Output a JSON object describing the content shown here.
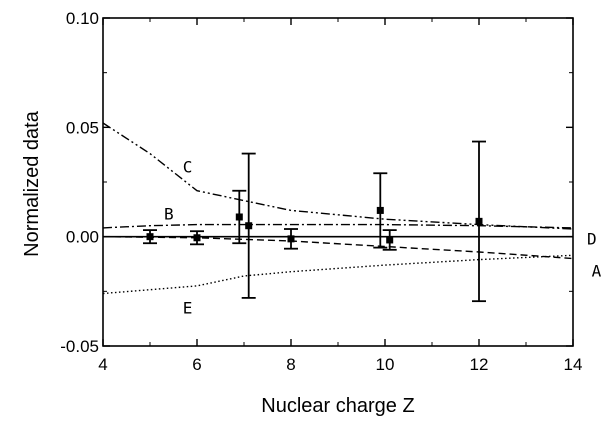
{
  "chart_data": {
    "type": "scatter",
    "title": "",
    "xlabel": "Nuclear charge Z",
    "ylabel": "Normalized data",
    "xlim": [
      4,
      14
    ],
    "ylim": [
      -0.05,
      0.1
    ],
    "x_ticks": [
      4,
      6,
      8,
      10,
      12,
      14
    ],
    "y_ticks": [
      -0.05,
      0.0,
      0.05,
      0.1
    ],
    "y_tick_labels": [
      "-0.05",
      "0.00",
      "0.05",
      "0.10"
    ],
    "grid": false,
    "points": [
      {
        "x": 5.0,
        "y": 0.0,
        "err": 0.003
      },
      {
        "x": 6.0,
        "y": -0.0005,
        "err": 0.003
      },
      {
        "x": 6.9,
        "y": 0.009,
        "err": 0.012
      },
      {
        "x": 7.1,
        "y": 0.005,
        "err": 0.033
      },
      {
        "x": 8.0,
        "y": -0.001,
        "err": 0.0045
      },
      {
        "x": 9.9,
        "y": 0.012,
        "err": 0.017
      },
      {
        "x": 10.1,
        "y": -0.0015,
        "err": 0.0045
      },
      {
        "x": 12.0,
        "y": 0.007,
        "err": 0.0365
      }
    ],
    "curves": [
      {
        "label": "A",
        "style": "dashed",
        "x": [
          4,
          6,
          8,
          10,
          12,
          14
        ],
        "y": [
          0.0,
          -0.0005,
          -0.002,
          -0.0045,
          -0.007,
          -0.01
        ]
      },
      {
        "label": "B",
        "style": "dashdot",
        "x": [
          4,
          5,
          6,
          8,
          10,
          12,
          14
        ],
        "y": [
          0.004,
          0.005,
          0.0055,
          0.0055,
          0.0055,
          0.005,
          0.004
        ]
      },
      {
        "label": "C",
        "style": "dashdotdot",
        "x": [
          4,
          5,
          6,
          7,
          8,
          10,
          12,
          14
        ],
        "y": [
          0.052,
          0.038,
          0.021,
          0.0165,
          0.012,
          0.008,
          0.0055,
          0.0035
        ]
      },
      {
        "label": "D",
        "style": "solid",
        "x": [
          4,
          14
        ],
        "y": [
          0.0,
          0.0
        ]
      },
      {
        "label": "E",
        "style": "dotted",
        "x": [
          4,
          6,
          7,
          8,
          10,
          12,
          14
        ],
        "y": [
          -0.026,
          -0.0225,
          -0.018,
          -0.016,
          -0.013,
          -0.0105,
          -0.0085
        ]
      }
    ],
    "curve_labels": [
      {
        "text": "A",
        "x": 14.5,
        "y": -0.0155
      },
      {
        "text": "B",
        "x": 5.4,
        "y": 0.0105
      },
      {
        "text": "C",
        "x": 5.8,
        "y": 0.032
      },
      {
        "text": "D",
        "x": 14.4,
        "y": -0.0008
      },
      {
        "text": "E",
        "x": 5.8,
        "y": -0.0325
      }
    ]
  }
}
